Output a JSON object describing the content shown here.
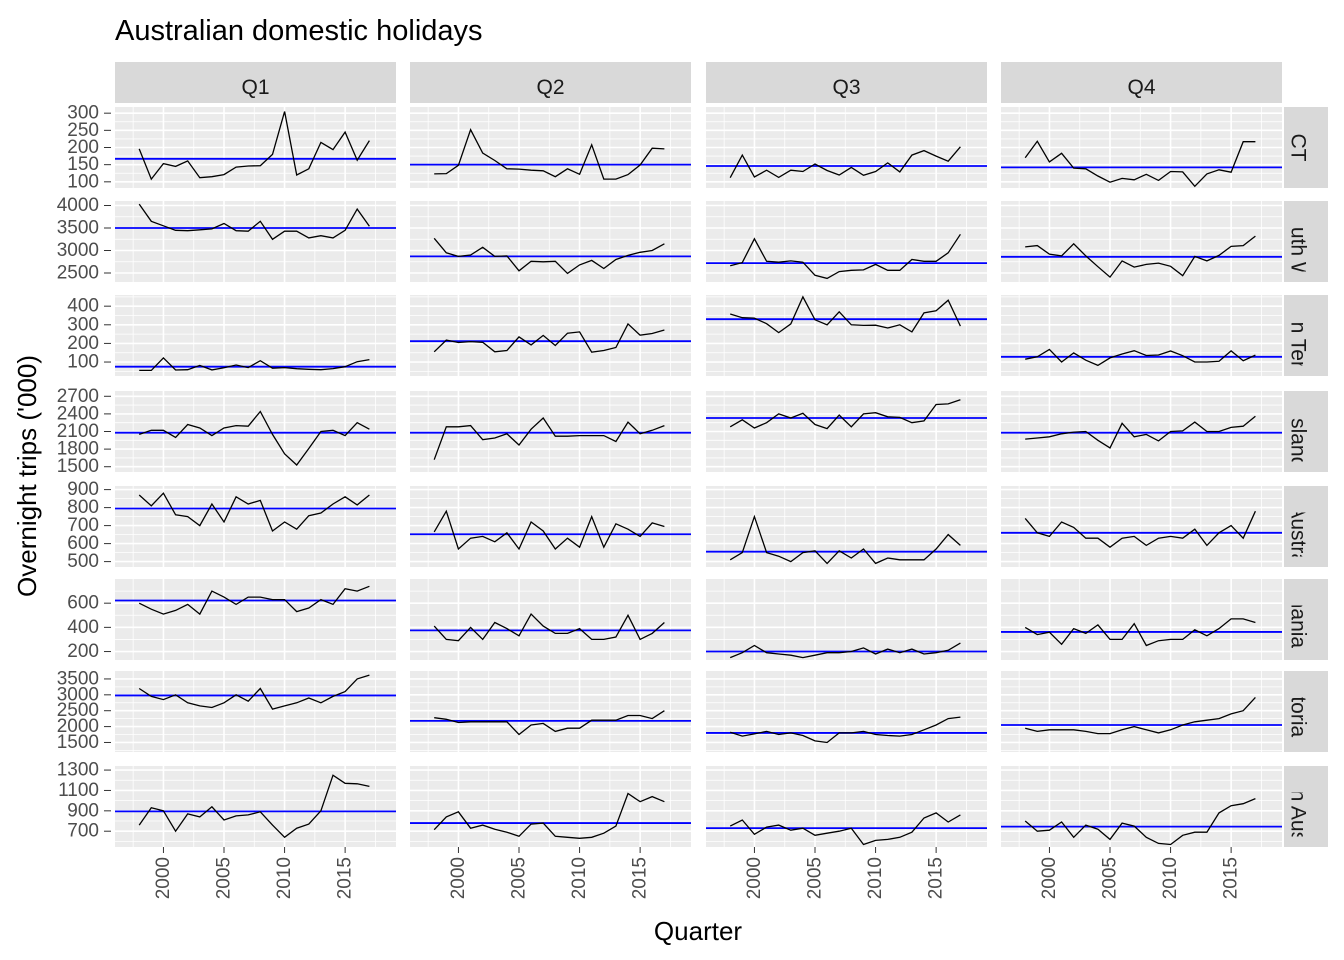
{
  "chart_data": {
    "type": "line",
    "title": "Australian domestic holidays",
    "xlabel": "Quarter",
    "ylabel": "Overnight trips ('000)",
    "columns": [
      "Q1",
      "Q2",
      "Q3",
      "Q4"
    ],
    "rows": [
      "ACT",
      "New South Wales",
      "Northern Territory",
      "Queensland",
      "South Australia",
      "Tasmania",
      "Victoria",
      "Western Australia"
    ],
    "row_labels_visible": [
      "CT",
      "South W",
      "ern Ter",
      "ensland",
      "h Austra",
      "mania",
      "ctoria",
      "ern Aus"
    ],
    "x": [
      1998,
      1999,
      2000,
      2001,
      2002,
      2003,
      2004,
      2005,
      2006,
      2007,
      2008,
      2009,
      2010,
      2011,
      2012,
      2013,
      2014,
      2015,
      2016,
      2017
    ],
    "x_ticks": [
      2000,
      2005,
      2010,
      2015
    ],
    "xlim": [
      1996.0,
      2019.2
    ],
    "grid": true,
    "colors": {
      "series": "#000000",
      "mean_line": "#0000ff",
      "panel_bg": "#ebebeb",
      "strip_bg": "#d9d9d9",
      "grid": "#ffffff"
    },
    "panels": [
      {
        "row": "ACT",
        "ylim": [
          82,
          318
        ],
        "y_ticks": [
          100,
          150,
          200,
          250,
          300
        ],
        "series": [
          {
            "quarter": "Q1",
            "mean": 167,
            "values": [
              196,
              108,
              153,
              145,
              161,
              112,
              115,
              121,
              143,
              146,
              147,
              180,
              305,
              120,
              138,
              215,
              194,
              245,
              163,
              220
            ]
          },
          {
            "quarter": "Q2",
            "mean": 150,
            "values": [
              123,
              124,
              148,
              252,
              184,
              162,
              138,
              137,
              134,
              132,
              115,
              138,
              122,
              208,
              108,
              108,
              121,
              149,
              198,
              196
            ]
          },
          {
            "quarter": "Q3",
            "mean": 146,
            "values": [
              112,
              178,
              114,
              134,
              113,
              134,
              130,
              152,
              133,
              120,
              142,
              119,
              130,
              155,
              129,
              178,
              191,
              175,
              160,
              202
            ]
          },
          {
            "quarter": "Q4",
            "mean": 142,
            "values": [
              170,
              218,
              158,
              183,
              140,
              138,
              117,
              99,
              110,
              106,
              122,
              104,
              130,
              129,
              87,
              123,
              135,
              128,
              217,
              217
            ]
          }
        ]
      },
      {
        "row": "New South Wales",
        "ylim": [
          2300,
          4100
        ],
        "y_ticks": [
          2500,
          3000,
          3500,
          4000
        ],
        "series": [
          {
            "quarter": "Q1",
            "mean": 3500,
            "values": [
              4030,
              3650,
              3550,
              3450,
              3440,
              3460,
              3480,
              3600,
              3440,
              3430,
              3650,
              3250,
              3430,
              3430,
              3280,
              3330,
              3280,
              3450,
              3920,
              3540
            ]
          },
          {
            "quarter": "Q2",
            "mean": 2870,
            "values": [
              3270,
              2950,
              2870,
              2900,
              3070,
              2870,
              2880,
              2550,
              2760,
              2750,
              2760,
              2490,
              2680,
              2780,
              2600,
              2800,
              2890,
              2960,
              3000,
              3150
            ]
          },
          {
            "quarter": "Q3",
            "mean": 2720,
            "values": [
              2660,
              2730,
              3260,
              2760,
              2740,
              2770,
              2740,
              2450,
              2380,
              2530,
              2560,
              2570,
              2690,
              2560,
              2560,
              2800,
              2760,
              2760,
              2950,
              3360
            ]
          },
          {
            "quarter": "Q4",
            "mean": 2860,
            "values": [
              3080,
              3110,
              2920,
              2880,
              3150,
              2880,
              2640,
              2410,
              2770,
              2630,
              2690,
              2720,
              2650,
              2440,
              2870,
              2770,
              2890,
              3090,
              3110,
              3320
            ]
          }
        ]
      },
      {
        "row": "Northern Territory",
        "ylim": [
          25,
          460
        ],
        "y_ticks": [
          100,
          200,
          300,
          400
        ],
        "series": [
          {
            "quarter": "Q1",
            "mean": 75,
            "values": [
              55,
              55,
              122,
              57,
              59,
              82,
              58,
              69,
              84,
              70,
              107,
              67,
              70,
              64,
              61,
              59,
              65,
              75,
              102,
              113
            ]
          },
          {
            "quarter": "Q2",
            "mean": 212,
            "values": [
              155,
              218,
              205,
              210,
              206,
              155,
              162,
              235,
              192,
              243,
              189,
              255,
              262,
              153,
              162,
              178,
              305,
              244,
              253,
              272
            ]
          },
          {
            "quarter": "Q3",
            "mean": 330,
            "values": [
              358,
              338,
              336,
              306,
              258,
              305,
              450,
              327,
              300,
              370,
              300,
              297,
              298,
              283,
              300,
              262,
              364,
              375,
              432,
              293
            ]
          },
          {
            "quarter": "Q4",
            "mean": 128,
            "values": [
              115,
              128,
              168,
              100,
              149,
              110,
              82,
              122,
              143,
              161,
              135,
              138,
              159,
              134,
              100,
              100,
              104,
              160,
              107,
              137
            ]
          }
        ]
      },
      {
        "row": "Queensland",
        "ylim": [
          1410,
          2790
        ],
        "y_ticks": [
          1500,
          1800,
          2100,
          2400,
          2700
        ],
        "series": [
          {
            "quarter": "Q1",
            "mean": 2080,
            "values": [
              2050,
              2120,
              2120,
              2000,
              2220,
              2160,
              2030,
              2160,
              2200,
              2190,
              2440,
              2050,
              1720,
              1530,
              1810,
              2100,
              2120,
              2030,
              2250,
              2140
            ]
          },
          {
            "quarter": "Q2",
            "mean": 2080,
            "values": [
              1620,
              2180,
              2180,
              2200,
              1960,
              1990,
              2060,
              1870,
              2140,
              2330,
              2020,
              2020,
              2030,
              2030,
              2030,
              1930,
              2260,
              2060,
              2120,
              2200
            ]
          },
          {
            "quarter": "Q3",
            "mean": 2330,
            "values": [
              2180,
              2300,
              2160,
              2250,
              2400,
              2330,
              2410,
              2220,
              2150,
              2380,
              2180,
              2400,
              2420,
              2350,
              2340,
              2250,
              2280,
              2560,
              2570,
              2640
            ]
          },
          {
            "quarter": "Q4",
            "mean": 2080,
            "values": [
              1970,
              1990,
              2010,
              2060,
              2090,
              2100,
              1950,
              1820,
              2240,
              2010,
              2050,
              1940,
              2100,
              2110,
              2260,
              2100,
              2100,
              2170,
              2190,
              2360
            ]
          }
        ]
      },
      {
        "row": "South Australia",
        "ylim": [
          470,
          920
        ],
        "y_ticks": [
          500,
          600,
          700,
          800,
          900
        ],
        "series": [
          {
            "quarter": "Q1",
            "mean": 795,
            "values": [
              870,
              810,
              880,
              760,
              750,
              700,
              820,
              720,
              860,
              820,
              840,
              670,
              720,
              680,
              755,
              770,
              820,
              860,
              815,
              870
            ]
          },
          {
            "quarter": "Q2",
            "mean": 652,
            "values": [
              665,
              780,
              570,
              630,
              640,
              610,
              660,
              570,
              720,
              670,
              570,
              630,
              580,
              750,
              580,
              710,
              680,
              640,
              715,
              695
            ]
          },
          {
            "quarter": "Q3",
            "mean": 555,
            "values": [
              510,
              550,
              750,
              550,
              530,
              500,
              550,
              560,
              490,
              560,
              520,
              570,
              490,
              520,
              510,
              510,
              510,
              570,
              650,
              590
            ]
          },
          {
            "quarter": "Q4",
            "mean": 660,
            "values": [
              740,
              660,
              640,
              720,
              690,
              630,
              630,
              580,
              630,
              640,
              590,
              630,
              640,
              630,
              680,
              590,
              660,
              700,
              630,
              780
            ]
          }
        ]
      },
      {
        "row": "Tasmania",
        "ylim": [
          130,
          800
        ],
        "y_ticks": [
          200,
          400,
          600
        ],
        "series": [
          {
            "quarter": "Q1",
            "mean": 622,
            "values": [
              600,
              550,
              510,
              540,
              590,
              510,
              700,
              650,
              590,
              650,
              650,
              630,
              630,
              530,
              560,
              630,
              590,
              720,
              700,
              740
            ]
          },
          {
            "quarter": "Q2",
            "mean": 375,
            "values": [
              410,
              300,
              290,
              400,
              300,
              440,
              390,
              330,
              510,
              410,
              350,
              350,
              390,
              300,
              300,
              320,
              500,
              300,
              350,
              440
            ]
          },
          {
            "quarter": "Q3",
            "mean": 200,
            "values": [
              150,
              190,
              250,
              190,
              180,
              170,
              150,
              170,
              190,
              190,
              200,
              230,
              180,
              220,
              190,
              220,
              180,
              190,
              210,
              270
            ]
          },
          {
            "quarter": "Q4",
            "mean": 362,
            "values": [
              400,
              340,
              360,
              260,
              390,
              350,
              420,
              300,
              300,
              430,
              250,
              290,
              300,
              300,
              380,
              330,
              390,
              470,
              470,
              440
            ]
          }
        ]
      },
      {
        "row": "Victoria",
        "ylim": [
          1200,
          3750
        ],
        "y_ticks": [
          1500,
          2000,
          2500,
          3000,
          3500
        ],
        "series": [
          {
            "quarter": "Q1",
            "mean": 2980,
            "values": [
              3200,
              2950,
              2850,
              3000,
              2750,
              2650,
              2600,
              2750,
              3000,
              2800,
              3200,
              2550,
              2650,
              2750,
              2900,
              2750,
              2950,
              3100,
              3500,
              3620
            ]
          },
          {
            "quarter": "Q2",
            "mean": 2180,
            "values": [
              2280,
              2230,
              2130,
              2150,
              2150,
              2150,
              2150,
              1750,
              2050,
              2100,
              1850,
              1950,
              1950,
              2200,
              2200,
              2200,
              2350,
              2350,
              2250,
              2500
            ]
          },
          {
            "quarter": "Q3",
            "mean": 1800,
            "values": [
              1820,
              1700,
              1770,
              1850,
              1750,
              1800,
              1720,
              1550,
              1500,
              1800,
              1800,
              1850,
              1750,
              1720,
              1700,
              1750,
              1900,
              2050,
              2250,
              2300
            ]
          },
          {
            "quarter": "Q4",
            "mean": 2050,
            "values": [
              1950,
              1850,
              1900,
              1900,
              1900,
              1850,
              1780,
              1780,
              1900,
              2000,
              1900,
              1800,
              1900,
              2050,
              2150,
              2200,
              2250,
              2400,
              2500,
              2920
            ]
          }
        ]
      },
      {
        "row": "Western Australia",
        "ylim": [
          545,
          1340
        ],
        "y_ticks": [
          700,
          900,
          1100,
          1300
        ],
        "series": [
          {
            "quarter": "Q1",
            "mean": 895,
            "values": [
              760,
              930,
              900,
              700,
              870,
              840,
              940,
              810,
              850,
              860,
              890,
              760,
              640,
              730,
              770,
              900,
              1250,
              1170,
              1165,
              1140
            ]
          },
          {
            "quarter": "Q2",
            "mean": 780,
            "values": [
              715,
              840,
              890,
              730,
              760,
              720,
              690,
              650,
              770,
              780,
              650,
              640,
              630,
              640,
              680,
              750,
              1070,
              990,
              1040,
              990
            ]
          },
          {
            "quarter": "Q3",
            "mean": 730,
            "values": [
              750,
              810,
              670,
              740,
              760,
              710,
              730,
              660,
              680,
              700,
              730,
              570,
              610,
              620,
              640,
              690,
              830,
              880,
              790,
              860
            ]
          },
          {
            "quarter": "Q4",
            "mean": 745,
            "values": [
              800,
              700,
              710,
              790,
              640,
              760,
              720,
              620,
              780,
              750,
              640,
              580,
              570,
              660,
              690,
              690,
              880,
              950,
              970,
              1020
            ]
          }
        ]
      }
    ]
  }
}
